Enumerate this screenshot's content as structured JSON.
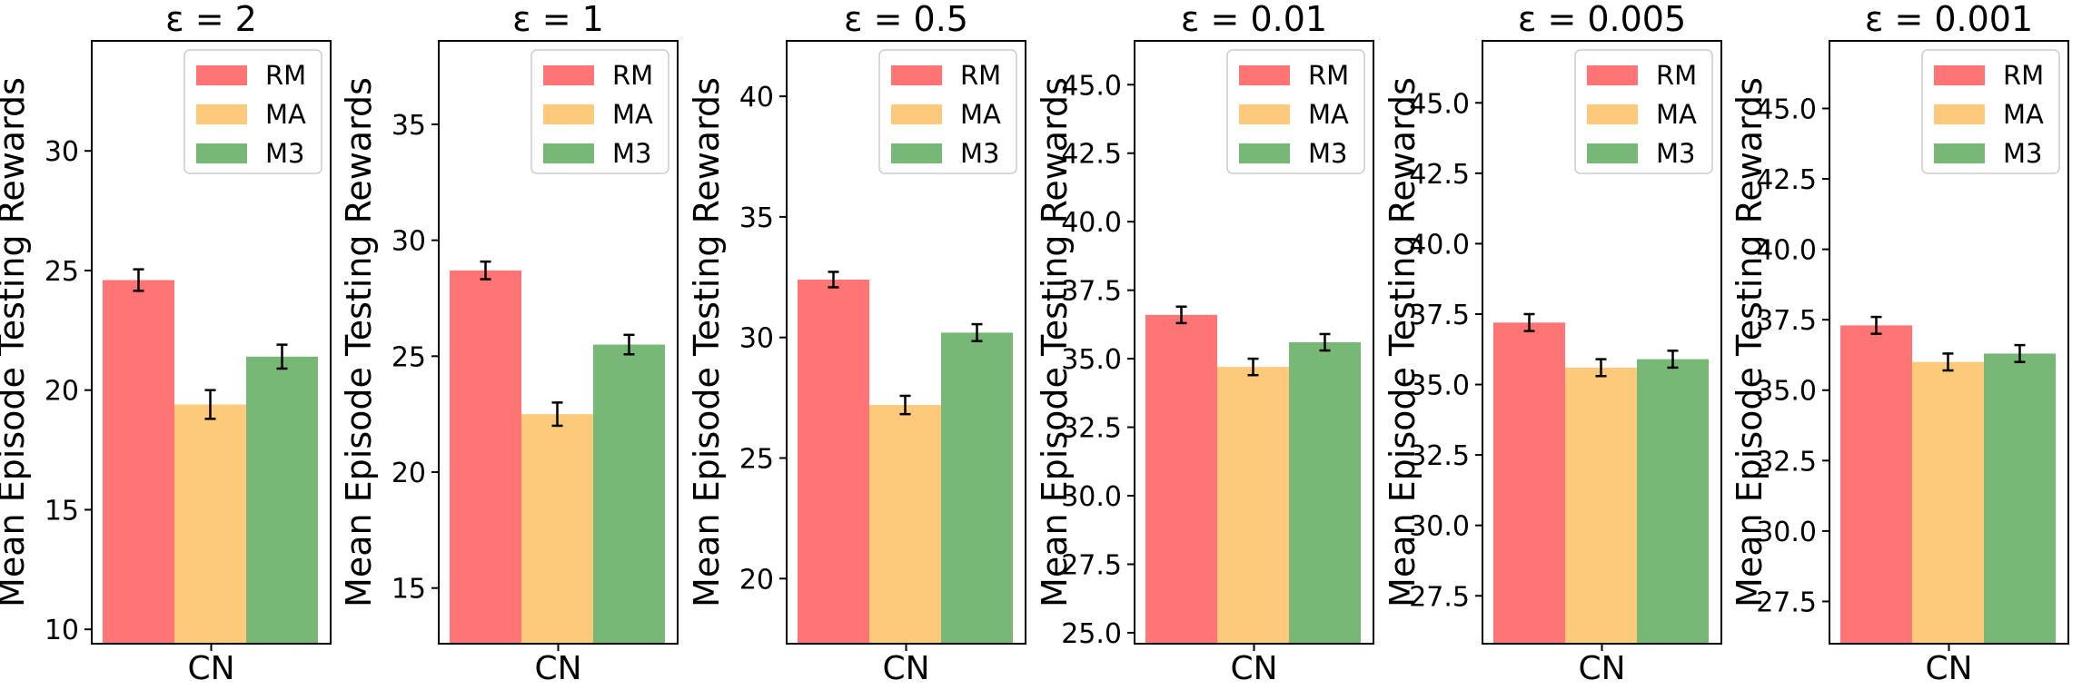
{
  "chart_data": [
    {
      "type": "bar",
      "title": "ε = 2",
      "xlabel": "",
      "ylabel": "Mean Episode Testing Rewards",
      "categories": [
        "CN"
      ],
      "ylim": [
        9.4,
        34.6
      ],
      "yticks": [
        10,
        15,
        20,
        25,
        30
      ],
      "ytick_labels": [
        "10",
        "15",
        "20",
        "25",
        "30"
      ],
      "series": [
        {
          "name": "RM",
          "values": [
            24.6
          ],
          "errors": [
            0.45
          ]
        },
        {
          "name": "MA",
          "values": [
            19.4
          ],
          "errors": [
            0.6
          ]
        },
        {
          "name": "M3",
          "values": [
            21.4
          ],
          "errors": [
            0.5
          ]
        }
      ],
      "legend_position": "top-right"
    },
    {
      "type": "bar",
      "title": "ε = 1",
      "xlabel": "",
      "ylabel": "Mean Episode Testing Rewards",
      "categories": [
        "CN"
      ],
      "ylim": [
        12.6,
        38.6
      ],
      "yticks": [
        15,
        20,
        25,
        30,
        35
      ],
      "ytick_labels": [
        "15",
        "20",
        "25",
        "30",
        "35"
      ],
      "series": [
        {
          "name": "RM",
          "values": [
            28.7
          ],
          "errors": [
            0.38
          ]
        },
        {
          "name": "MA",
          "values": [
            22.5
          ],
          "errors": [
            0.5
          ]
        },
        {
          "name": "M3",
          "values": [
            25.5
          ],
          "errors": [
            0.42
          ]
        }
      ],
      "legend_position": "top-right"
    },
    {
      "type": "bar",
      "title": "ε = 0.5",
      "xlabel": "",
      "ylabel": "Mean Episode Testing Rewards",
      "categories": [
        "CN"
      ],
      "ylim": [
        17.3,
        42.3
      ],
      "yticks": [
        20,
        25,
        30,
        35,
        40
      ],
      "ytick_labels": [
        "20",
        "25",
        "30",
        "35",
        "40"
      ],
      "series": [
        {
          "name": "RM",
          "values": [
            32.4
          ],
          "errors": [
            0.32
          ]
        },
        {
          "name": "MA",
          "values": [
            27.2
          ],
          "errors": [
            0.38
          ]
        },
        {
          "name": "M3",
          "values": [
            30.2
          ],
          "errors": [
            0.35
          ]
        }
      ],
      "legend_position": "top-right"
    },
    {
      "type": "bar",
      "title": "ε = 0.01",
      "xlabel": "",
      "ylabel": "Mean Episode Testing Rewards",
      "categories": [
        "CN"
      ],
      "ylim": [
        24.6,
        46.6
      ],
      "yticks": [
        25,
        27.5,
        30,
        32.5,
        35,
        37.5,
        40,
        42.5,
        45
      ],
      "ytick_labels": [
        "25.0",
        "27.5",
        "30.0",
        "32.5",
        "35.0",
        "37.5",
        "40.0",
        "42.5",
        "45.0"
      ],
      "series": [
        {
          "name": "RM",
          "values": [
            36.6
          ],
          "errors": [
            0.3
          ]
        },
        {
          "name": "MA",
          "values": [
            34.7
          ],
          "errors": [
            0.3
          ]
        },
        {
          "name": "M3",
          "values": [
            35.6
          ],
          "errors": [
            0.3
          ]
        }
      ],
      "legend_position": "top-right"
    },
    {
      "type": "bar",
      "title": "ε = 0.005",
      "xlabel": "",
      "ylabel": "Mean Episode Testing Rewards",
      "categories": [
        "CN"
      ],
      "ylim": [
        25.8,
        47.2
      ],
      "yticks": [
        27.5,
        30,
        32.5,
        35,
        37.5,
        40,
        42.5,
        45
      ],
      "ytick_labels": [
        "27.5",
        "30.0",
        "32.5",
        "35.0",
        "37.5",
        "40.0",
        "42.5",
        "45.0"
      ],
      "series": [
        {
          "name": "RM",
          "values": [
            37.2
          ],
          "errors": [
            0.3
          ]
        },
        {
          "name": "MA",
          "values": [
            35.6
          ],
          "errors": [
            0.3
          ]
        },
        {
          "name": "M3",
          "values": [
            35.9
          ],
          "errors": [
            0.3
          ]
        }
      ],
      "legend_position": "top-right"
    },
    {
      "type": "bar",
      "title": "ε = 0.001",
      "xlabel": "",
      "ylabel": "Mean Episode Testing Rewards",
      "categories": [
        "CN"
      ],
      "ylim": [
        26.0,
        47.4
      ],
      "yticks": [
        27.5,
        30,
        32.5,
        35,
        37.5,
        40,
        42.5,
        45
      ],
      "ytick_labels": [
        "27.5",
        "30.0",
        "32.5",
        "35.0",
        "37.5",
        "40.0",
        "42.5",
        "45.0"
      ],
      "series": [
        {
          "name": "RM",
          "values": [
            37.3
          ],
          "errors": [
            0.3
          ]
        },
        {
          "name": "MA",
          "values": [
            36.0
          ],
          "errors": [
            0.3
          ]
        },
        {
          "name": "M3",
          "values": [
            36.3
          ],
          "errors": [
            0.3
          ]
        }
      ],
      "legend_position": "top-right"
    }
  ],
  "colors": {
    "RM": "#ff7575",
    "MA": "#fdc97a",
    "M3": "#78b876",
    "error_bar": "#000000",
    "axis": "#000000"
  }
}
